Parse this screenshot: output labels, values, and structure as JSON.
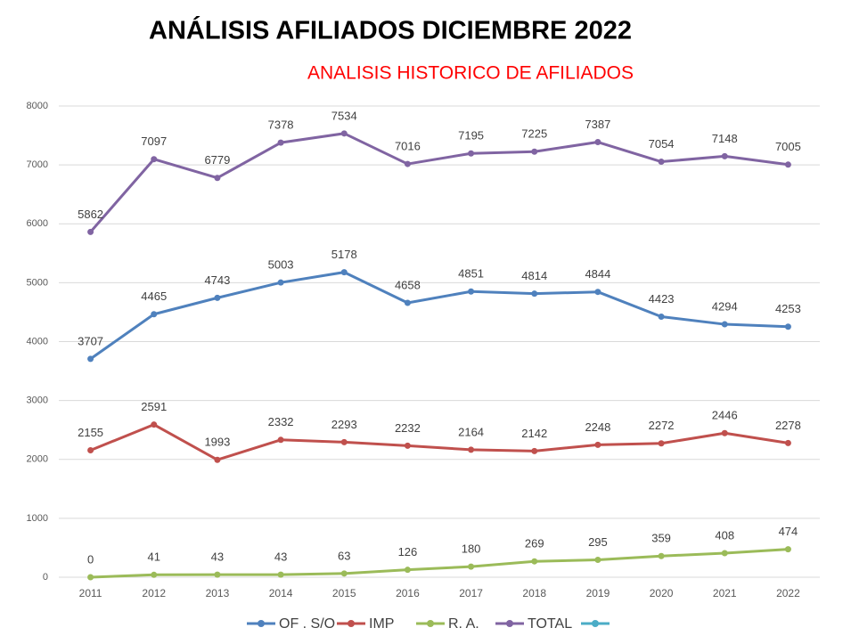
{
  "chart_data": {
    "type": "line",
    "title": "ANÁLISIS AFILIADOS  DICIEMBRE 2022",
    "subtitle": "ANALISIS HISTORICO DE AFILIADOS",
    "categories": [
      "2011",
      "2012",
      "2013",
      "2014",
      "2015",
      "2016",
      "2017",
      "2018",
      "2019",
      "2020",
      "2021",
      "2022"
    ],
    "series": [
      {
        "name": "OF . S/O",
        "color": "#4f81bd",
        "values": [
          3707,
          4465,
          4743,
          5003,
          5178,
          4658,
          4851,
          4814,
          4844,
          4423,
          4294,
          4253
        ]
      },
      {
        "name": "IMP",
        "color": "#c0504d",
        "values": [
          2155,
          2591,
          1993,
          2332,
          2293,
          2232,
          2164,
          2142,
          2248,
          2272,
          2446,
          2278
        ]
      },
      {
        "name": "R. A.",
        "color": "#9bbb59",
        "values": [
          0,
          41,
          43,
          43,
          63,
          126,
          180,
          269,
          295,
          359,
          408,
          474
        ]
      },
      {
        "name": "TOTAL",
        "color": "#8064a2",
        "values": [
          5862,
          7097,
          6779,
          7378,
          7534,
          7016,
          7195,
          7225,
          7387,
          7054,
          7148,
          7005
        ]
      }
    ],
    "ylim": [
      0,
      8000
    ],
    "yticks": [
      0,
      1000,
      2000,
      3000,
      4000,
      5000,
      6000,
      7000,
      8000
    ],
    "grid": true,
    "legend": "bottom"
  }
}
